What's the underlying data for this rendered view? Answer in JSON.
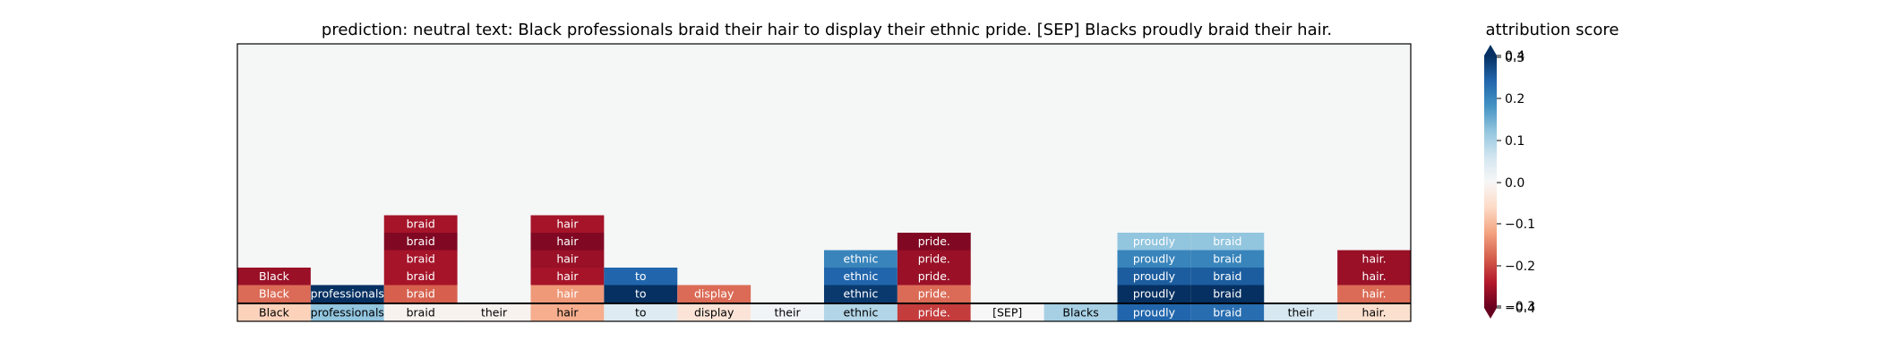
{
  "chart_data": {
    "type": "heatmap",
    "title": "prediction:  neutral     text:  Black professionals braid their hair to display their ethnic pride. [SEP] Blacks proudly braid their hair.",
    "colorbar": {
      "title": "attribution score",
      "ticks": [
        "0.4",
        "0.3",
        "0.2",
        "0.1",
        "0.0",
        "−0.1",
        "−0.2",
        "−0.3",
        "−0.4"
      ],
      "range": [
        -0.3,
        0.3
      ],
      "colormap": "RdBu"
    },
    "tokens": [
      {
        "label": "Black",
        "score": -0.07,
        "stack": [
          -0.17,
          -0.26
        ]
      },
      {
        "label": "professionals",
        "score": 0.12,
        "stack": [
          0.3
        ]
      },
      {
        "label": "braid",
        "score": -0.01,
        "stack": [
          -0.18,
          -0.25,
          -0.25,
          -0.28,
          -0.25
        ]
      },
      {
        "label": "their",
        "score": -0.01,
        "stack": []
      },
      {
        "label": "hair",
        "score": -0.11,
        "stack": [
          -0.13,
          -0.25,
          -0.26,
          -0.28,
          -0.25
        ]
      },
      {
        "label": "to",
        "score": 0.04,
        "stack": [
          0.3,
          0.24
        ]
      },
      {
        "label": "display",
        "score": -0.04,
        "stack": [
          -0.17
        ]
      },
      {
        "label": "their",
        "score": 0.01,
        "stack": []
      },
      {
        "label": "ethnic",
        "score": 0.09,
        "stack": [
          0.29,
          0.24,
          0.2
        ]
      },
      {
        "label": "pride.",
        "score": -0.21,
        "stack": [
          -0.17,
          -0.26,
          -0.26,
          -0.28
        ]
      },
      {
        "label": "[SEP]",
        "score": 0.0,
        "stack": []
      },
      {
        "label": "Blacks",
        "score": 0.1,
        "stack": []
      },
      {
        "label": "proudly",
        "score": 0.24,
        "stack": [
          0.3,
          0.25,
          0.2,
          0.12
        ]
      },
      {
        "label": "braid",
        "score": 0.23,
        "stack": [
          0.3,
          0.25,
          0.2,
          0.12
        ]
      },
      {
        "label": "their",
        "score": 0.05,
        "stack": []
      },
      {
        "label": "hair.",
        "score": -0.05,
        "stack": [
          -0.17,
          -0.26,
          -0.26
        ]
      }
    ]
  }
}
